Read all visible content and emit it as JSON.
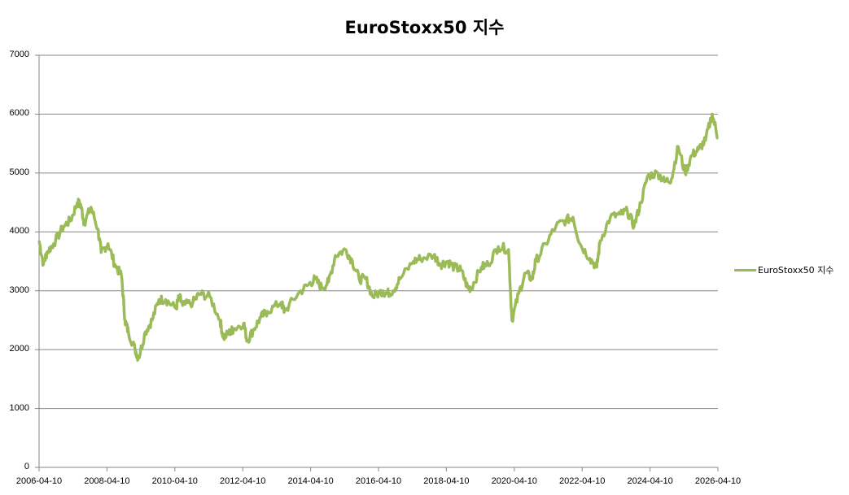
{
  "chart_data": {
    "type": "line",
    "title": "EuroStoxx50 지수",
    "xlabel": "",
    "ylabel": "",
    "ylim": [
      0,
      7000
    ],
    "yticks": [
      0,
      1000,
      2000,
      3000,
      4000,
      5000,
      6000,
      7000
    ],
    "xticks": [
      "2006-04-10",
      "2008-04-10",
      "2010-04-10",
      "2012-04-10",
      "2014-04-10",
      "2016-04-10",
      "2018-04-10",
      "2020-04-10",
      "2022-04-10",
      "2024-04-10",
      "2026-04-10"
    ],
    "grid": "horizontal",
    "legend_position": "right",
    "series": [
      {
        "name": "EuroStoxx50 지수",
        "color": "#9bbb59",
        "x": [
          2006.27,
          2006.4,
          2006.5,
          2006.7,
          2007.0,
          2007.2,
          2007.4,
          2007.5,
          2007.6,
          2007.8,
          2008.0,
          2008.1,
          2008.3,
          2008.5,
          2008.7,
          2008.8,
          2008.9,
          2009.1,
          2009.2,
          2009.4,
          2009.6,
          2009.8,
          2010.0,
          2010.3,
          2010.4,
          2010.5,
          2010.8,
          2011.0,
          2011.3,
          2011.6,
          2011.7,
          2011.9,
          2012.0,
          2012.3,
          2012.4,
          2012.6,
          2012.8,
          2013.0,
          2013.4,
          2013.5,
          2013.9,
          2014.2,
          2014.4,
          2014.6,
          2014.8,
          2015.0,
          2015.3,
          2015.5,
          2015.7,
          2015.9,
          2016.1,
          2016.4,
          2016.5,
          2016.7,
          2016.9,
          2017.3,
          2017.5,
          2017.9,
          2018.1,
          2018.3,
          2018.5,
          2018.7,
          2018.9,
          2019.0,
          2019.3,
          2019.5,
          2019.8,
          2020.1,
          2020.2,
          2020.4,
          2020.6,
          2020.8,
          2020.9,
          2021.2,
          2021.5,
          2021.8,
          2022.0,
          2022.2,
          2022.5,
          2022.7,
          2022.8,
          2023.1,
          2023.4,
          2023.6,
          2023.8,
          2024.0,
          2024.2,
          2024.5,
          2024.7,
          2024.9,
          2025.1,
          2025.3,
          2025.5,
          2025.7,
          2025.9,
          2026.1,
          2026.27
        ],
        "values": [
          3850,
          3450,
          3650,
          3800,
          4100,
          4200,
          4500,
          4450,
          4150,
          4420,
          4050,
          3650,
          3800,
          3450,
          3250,
          2500,
          2300,
          2000,
          1850,
          2300,
          2500,
          2850,
          2850,
          2700,
          2900,
          2750,
          2800,
          2950,
          2900,
          2500,
          2200,
          2300,
          2350,
          2450,
          2150,
          2350,
          2550,
          2650,
          2800,
          2650,
          2950,
          3100,
          3200,
          3050,
          3150,
          3600,
          3700,
          3500,
          3200,
          3200,
          2900,
          3000,
          2950,
          3000,
          3200,
          3500,
          3550,
          3600,
          3450,
          3500,
          3400,
          3350,
          3050,
          3050,
          3400,
          3450,
          3750,
          3700,
          2500,
          2950,
          3300,
          3200,
          3500,
          3800,
          4100,
          4200,
          4250,
          3800,
          3550,
          3400,
          3850,
          4250,
          4300,
          4350,
          4100,
          4500,
          4950,
          5000,
          4850,
          4900,
          5450,
          5000,
          5300,
          5400,
          5550,
          6000,
          5600
        ]
      }
    ]
  }
}
